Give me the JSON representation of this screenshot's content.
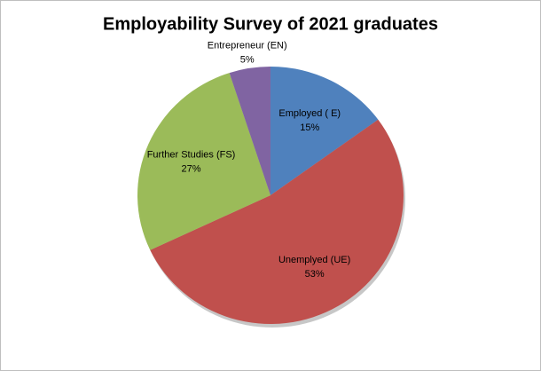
{
  "chart_data": {
    "type": "pie",
    "title": "Employability Survey of 2021 graduates",
    "categories": [
      "Employed ( E)",
      "Unemplyed (UE)",
      "Further Studies (FS)",
      "Entrepreneur  (EN)"
    ],
    "values": [
      15,
      53,
      27,
      5
    ],
    "value_labels": [
      "15%",
      "53%",
      "27%",
      "5%"
    ],
    "colors": [
      "#4f81bd",
      "#c0504d",
      "#9bbb59",
      "#8064a2"
    ]
  }
}
